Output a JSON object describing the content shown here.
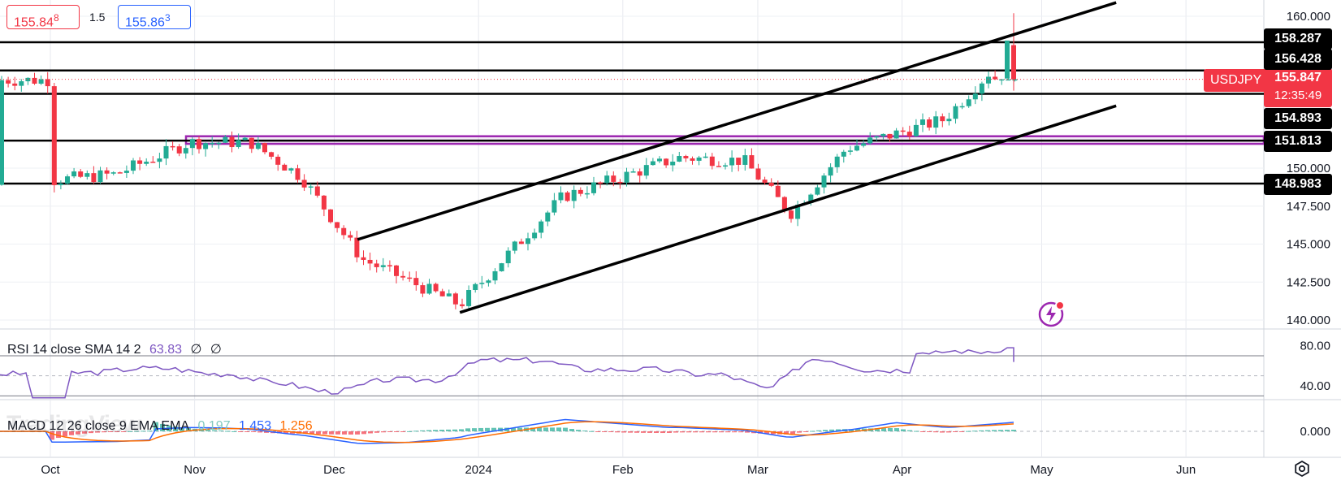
{
  "header": {
    "bid": "155.84",
    "bid_sup": "8",
    "spread": "1.5",
    "ask": "155.86",
    "ask_sup": "3"
  },
  "symbol": "USDJPY",
  "last_price": "155.847",
  "countdown": "12:35:49",
  "price_axis_ticks": [
    "160.000",
    "150.000",
    "147.500",
    "145.000",
    "142.500",
    "140.000"
  ],
  "level_tags": [
    "158.287",
    "156.428",
    "154.893",
    "151.813",
    "148.983"
  ],
  "rsi": {
    "label": "RSI 14 close SMA 14 2",
    "value": "63.83",
    "extra1": "∅",
    "extra2": "∅",
    "ticks": [
      "80.00",
      "40.00"
    ]
  },
  "macd": {
    "label": "MACD 12 26 close 9 EMA EMA",
    "hist": "0.197",
    "macd": "1.453",
    "signal": "1.256",
    "ticks": [
      "0.000"
    ]
  },
  "x_axis": [
    "Oct",
    "Nov",
    "Dec",
    "2024",
    "Feb",
    "Mar",
    "Apr",
    "May",
    "Jun"
  ],
  "watermark": "TradingView",
  "colors": {
    "up": "#22ab94",
    "down": "#f23645",
    "rsi": "#7e57c2",
    "macd": "#2962ff",
    "signal": "#ff6d00",
    "zone": "#9c27b0"
  },
  "chart_data": {
    "type": "candlestick",
    "title": "USDJPY",
    "ylim": [
      139.5,
      160.5
    ],
    "support_resistance": [
      158.287,
      156.428,
      154.893,
      151.813,
      148.983
    ],
    "resistance_zone": [
      151.6,
      152.1
    ],
    "channel": {
      "upper": [
        {
          "x": "2023-12-06",
          "y": 145.3
        },
        {
          "x": "2024-05-17",
          "y": 160.9
        }
      ],
      "lower": [
        {
          "x": "2023-12-28",
          "y": 140.5
        },
        {
          "x": "2024-05-17",
          "y": 154.1
        }
      ]
    },
    "daily_close_approx": [
      {
        "x": "2023-10-01",
        "y": 149.2
      },
      {
        "x": "2023-10-15",
        "y": 149.6
      },
      {
        "x": "2023-10-31",
        "y": 151.7
      },
      {
        "x": "2023-11-13",
        "y": 151.7
      },
      {
        "x": "2023-11-24",
        "y": 149.4
      },
      {
        "x": "2023-12-07",
        "y": 144.0
      },
      {
        "x": "2023-12-28",
        "y": 141.0
      },
      {
        "x": "2024-01-19",
        "y": 148.1
      },
      {
        "x": "2024-02-13",
        "y": 150.7
      },
      {
        "x": "2024-02-27",
        "y": 150.5
      },
      {
        "x": "2024-03-08",
        "y": 147.0
      },
      {
        "x": "2024-03-20",
        "y": 151.3
      },
      {
        "x": "2024-04-10",
        "y": 153.2
      },
      {
        "x": "2024-04-26",
        "y": 158.3
      },
      {
        "x": "2024-04-29",
        "y": 155.8
      }
    ]
  }
}
